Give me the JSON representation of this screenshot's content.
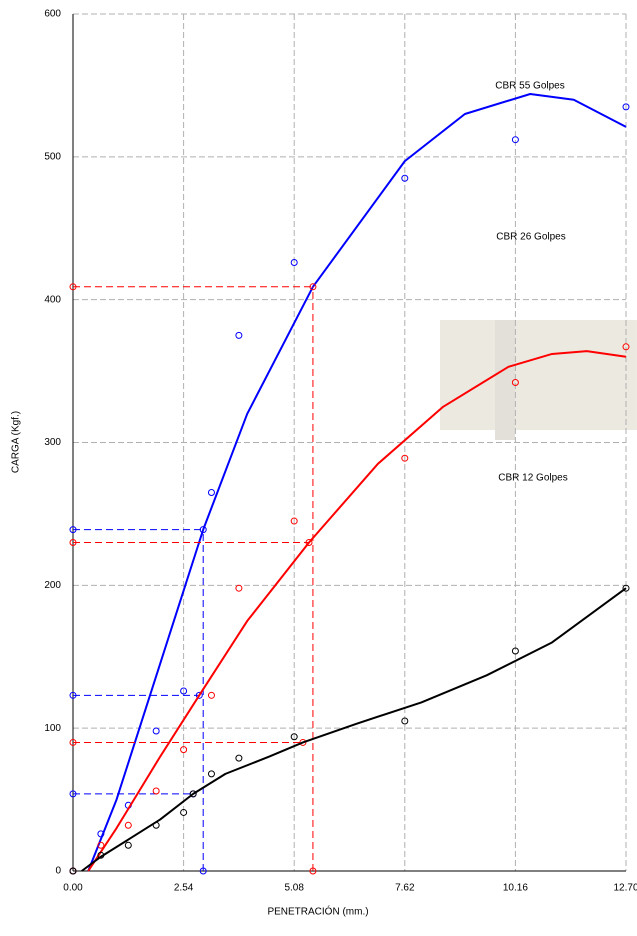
{
  "chart_data": {
    "type": "scatter",
    "x_label": "PENETRACIÓN (mm.)",
    "y_label": "CARGA   (Kgf.)",
    "xlim": [
      0,
      12.7
    ],
    "ylim": [
      0,
      600
    ],
    "xticks": [
      {
        "value": 0,
        "label": "0.00"
      },
      2.54,
      5.08,
      7.62,
      10.16,
      {
        "value": 12.7,
        "label": "12.70"
      }
    ],
    "yticks": [
      0,
      100,
      200,
      300,
      400,
      500,
      600
    ],
    "grid": true,
    "series": [
      {
        "name": "CBR 55 Golpes",
        "color": "#0000ff",
        "x": [
          0,
          0.64,
          1.27,
          1.91,
          2.54,
          3.18,
          3.81,
          5.08,
          7.62,
          10.16,
          12.7
        ],
        "values": [
          0,
          26,
          46,
          98,
          126,
          265,
          375,
          426,
          485,
          512,
          535
        ],
        "curve_x": [
          0.35,
          1,
          2,
          2.99,
          4,
          5.51,
          7.62,
          9,
          10.5,
          11.5,
          12.7
        ],
        "curve_y": [
          0,
          50,
          145,
          239,
          320,
          409,
          497,
          530,
          544,
          540,
          521
        ],
        "ref_x": 2.99,
        "ref_y": [
          239,
          123,
          54
        ],
        "ref_x_end": [
          2.99,
          2.9,
          2.76
        ]
      },
      {
        "name": "CBR 26 Golpes",
        "color": "#ff0000",
        "x": [
          0,
          0.64,
          1.27,
          1.91,
          2.54,
          3.18,
          3.81,
          5.08,
          7.62,
          10.16,
          12.7
        ],
        "values": [
          0,
          18,
          32,
          56,
          85,
          123,
          198,
          245,
          289,
          342,
          367
        ],
        "curve_x": [
          0.35,
          1,
          2,
          2.9,
          4,
          5.42,
          7,
          8.5,
          10,
          11,
          11.8,
          12.7
        ],
        "curve_y": [
          0,
          30,
          80,
          123,
          175,
          230,
          285,
          325,
          353,
          362,
          364,
          360
        ],
        "ref_x": 5.51,
        "ref_y": [
          409,
          230,
          90
        ],
        "ref_x_end": [
          5.51,
          5.42,
          5.28
        ]
      },
      {
        "name": "CBR 12 Golpes",
        "color": "#000000",
        "x": [
          0,
          0.64,
          1.27,
          1.91,
          2.54,
          2.76,
          3.18,
          3.81,
          5.08,
          7.62,
          10.16,
          12.7
        ],
        "values": [
          0,
          11,
          18,
          32,
          41,
          54,
          68,
          79,
          94,
          105,
          154,
          198
        ],
        "curve_x": [
          0.2,
          0.64,
          1.27,
          2,
          2.76,
          3.5,
          4.5,
          5.28,
          6.5,
          8,
          9.5,
          11,
          12.7
        ],
        "curve_y": [
          0,
          10,
          22,
          36,
          54,
          68,
          80,
          90,
          103,
          118,
          137,
          160,
          198
        ]
      }
    ]
  }
}
